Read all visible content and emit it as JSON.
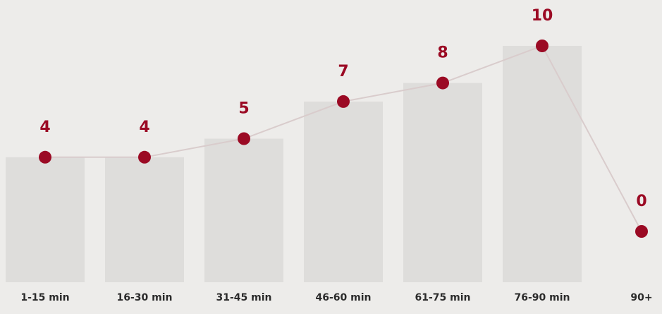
{
  "chart_data": {
    "type": "line",
    "categories": [
      "1-15 min",
      "16-30 min",
      "31-45 min",
      "46-60 min",
      "61-75 min",
      "76-90 min",
      "90+"
    ],
    "values": [
      4,
      4,
      5,
      7,
      8,
      10,
      0
    ],
    "color": "#9b0a24",
    "bar_color": "#dedddb",
    "line_color": "#d9cccc",
    "ylim": [
      0,
      10
    ]
  }
}
